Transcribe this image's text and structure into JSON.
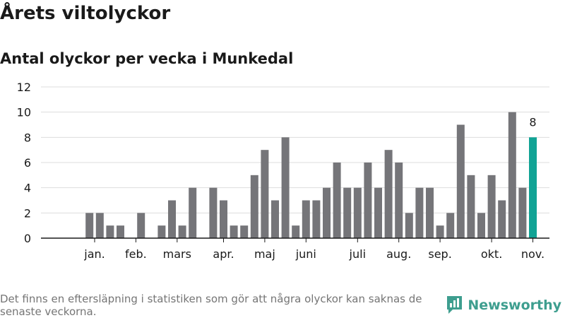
{
  "title": "Årets viltolyckor",
  "subtitle": "Antal olyckor per vecka i Munkedal",
  "footnote": "Det finns en eftersläpning i statistiken som gör att några olyckor kan saknas de senaste veckorna.",
  "brand": {
    "name": "Newsworthy",
    "icon": "newsworthy-logo-icon"
  },
  "colors": {
    "bar": "#757579",
    "highlight": "#11a395",
    "grid": "#dddddd",
    "brand": "#3e9e8f"
  },
  "chart_data": {
    "type": "bar",
    "title": "Antal olyckor per vecka i Munkedal",
    "xlabel": "",
    "ylabel": "",
    "ylim": [
      0,
      12
    ],
    "yticks": [
      "0",
      "2",
      "4",
      "6",
      "8",
      "10",
      "12"
    ],
    "weeks": [
      1,
      2,
      3,
      4,
      5,
      6,
      7,
      8,
      9,
      10,
      11,
      12,
      13,
      14,
      15,
      16,
      17,
      18,
      19,
      20,
      21,
      22,
      23,
      24,
      25,
      26,
      27,
      28,
      29,
      30,
      31,
      32,
      33,
      34,
      35,
      36,
      37,
      38,
      39,
      40,
      41,
      42,
      43,
      44,
      45,
      46,
      47
    ],
    "values": [
      0,
      0,
      2,
      2,
      1,
      1,
      0,
      2,
      0,
      1,
      3,
      1,
      4,
      0,
      4,
      3,
      1,
      1,
      5,
      7,
      3,
      8,
      1,
      3,
      3,
      4,
      6,
      4,
      4,
      6,
      4,
      7,
      6,
      2,
      4,
      4,
      1,
      2,
      9,
      5,
      2,
      5,
      3,
      10,
      4,
      8,
      0
    ],
    "highlight_index": 45,
    "data_label": "8",
    "month_labels": [
      {
        "label": "jan.",
        "week": 3.5
      },
      {
        "label": "feb.",
        "week": 7.5
      },
      {
        "label": "mars",
        "week": 11.5
      },
      {
        "label": "apr.",
        "week": 16
      },
      {
        "label": "maj",
        "week": 20
      },
      {
        "label": "juni",
        "week": 24
      },
      {
        "label": "juli",
        "week": 29
      },
      {
        "label": "aug.",
        "week": 33
      },
      {
        "label": "sep.",
        "week": 37
      },
      {
        "label": "okt.",
        "week": 42
      },
      {
        "label": "nov.",
        "week": 46
      }
    ]
  }
}
